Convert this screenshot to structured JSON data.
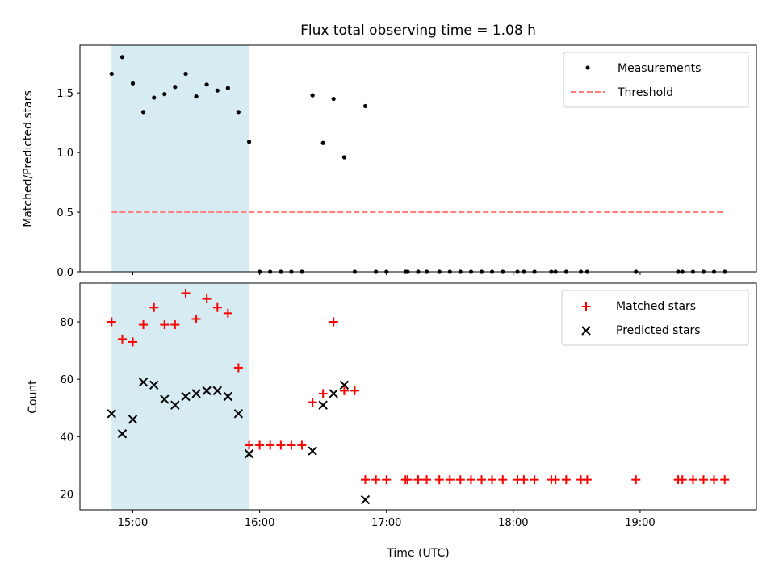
{
  "title": "Flux total observing time = 1.08 h",
  "colors": {
    "shade": "#add8e6",
    "measurement": "#000000",
    "threshold": "#ff7f7f",
    "matched": "#ff0000",
    "predicted": "#000000"
  },
  "chart_data": [
    {
      "type": "scatter",
      "ylabel": "Matched/Predicted stars",
      "xlabel": "",
      "x_unit": "hours (UTC)",
      "xlim": [
        14.583,
        19.917
      ],
      "ylim": [
        0,
        1.9
      ],
      "yticks": [
        0.0,
        0.5,
        1.0,
        1.5
      ],
      "ytick_labels": [
        "0.0",
        "0.5",
        "1.0",
        "1.5"
      ],
      "shaded_range": [
        14.833,
        15.917
      ],
      "legend": {
        "placement": "upper right",
        "entries": [
          "Measurements",
          "Threshold"
        ]
      },
      "threshold": {
        "name": "Threshold",
        "y": 0.5,
        "x_range": [
          14.833,
          19.667
        ]
      },
      "series": [
        {
          "name": "Measurements",
          "marker": "dot",
          "x": [
            14.833,
            14.917,
            15.0,
            15.083,
            15.167,
            15.25,
            15.333,
            15.417,
            15.5,
            15.583,
            15.667,
            15.75,
            15.833,
            15.917,
            16.0,
            16.083,
            16.167,
            16.25,
            16.333,
            16.417,
            16.5,
            16.583,
            16.667,
            16.75,
            16.833,
            16.917,
            17.0,
            17.15,
            17.167,
            17.25,
            17.317,
            17.417,
            17.5,
            17.583,
            17.667,
            17.75,
            17.833,
            17.917,
            18.033,
            18.083,
            18.167,
            18.3,
            18.333,
            18.417,
            18.533,
            18.583,
            18.967,
            19.3,
            19.333,
            19.417,
            19.5,
            19.583,
            19.667
          ],
          "y": [
            1.66,
            1.8,
            1.58,
            1.34,
            1.46,
            1.49,
            1.55,
            1.66,
            1.47,
            1.57,
            1.52,
            1.54,
            1.34,
            1.09,
            0,
            0,
            0,
            0,
            0,
            1.48,
            1.08,
            1.45,
            0.96,
            0,
            1.39,
            0,
            0,
            0,
            0,
            0,
            0,
            0,
            0,
            0,
            0,
            0,
            0,
            0,
            0,
            0,
            0,
            0,
            0,
            0,
            0,
            0,
            0,
            0,
            0,
            0,
            0,
            0,
            0
          ]
        }
      ]
    },
    {
      "type": "scatter",
      "ylabel": "Count",
      "xlabel": "Time (UTC)",
      "x_unit": "hours (UTC)",
      "xlim": [
        14.583,
        19.917
      ],
      "ylim": [
        14.5,
        93.5
      ],
      "yticks": [
        20,
        40,
        60,
        80
      ],
      "ytick_labels": [
        "20",
        "40",
        "60",
        "80"
      ],
      "xticks": [
        15,
        16,
        17,
        18,
        19
      ],
      "xtick_labels": [
        "15:00",
        "16:00",
        "17:00",
        "18:00",
        "19:00"
      ],
      "shaded_range": [
        14.833,
        15.917
      ],
      "legend": {
        "placement": "upper right",
        "entries": [
          "Matched stars",
          "Predicted stars"
        ]
      },
      "series": [
        {
          "name": "Matched stars",
          "marker": "plus",
          "x": [
            14.833,
            14.917,
            15.0,
            15.083,
            15.167,
            15.25,
            15.333,
            15.417,
            15.5,
            15.583,
            15.667,
            15.75,
            15.833,
            15.917,
            16.0,
            16.083,
            16.167,
            16.25,
            16.333,
            16.417,
            16.5,
            16.583,
            16.667,
            16.75,
            16.833,
            16.917,
            17.0,
            17.15,
            17.167,
            17.25,
            17.317,
            17.417,
            17.5,
            17.583,
            17.667,
            17.75,
            17.833,
            17.917,
            18.033,
            18.083,
            18.167,
            18.3,
            18.333,
            18.417,
            18.533,
            18.583,
            18.967,
            19.3,
            19.333,
            19.417,
            19.5,
            19.583,
            19.667
          ],
          "y": [
            80,
            74,
            73,
            79,
            85,
            79,
            79,
            90,
            81,
            88,
            85,
            83,
            64,
            37,
            37,
            37,
            37,
            37,
            37,
            52,
            55,
            80,
            56,
            56,
            25,
            25,
            25,
            25,
            25,
            25,
            25,
            25,
            25,
            25,
            25,
            25,
            25,
            25,
            25,
            25,
            25,
            25,
            25,
            25,
            25,
            25,
            25,
            25,
            25,
            25,
            25,
            25,
            25
          ]
        },
        {
          "name": "Predicted stars",
          "marker": "x",
          "x": [
            14.833,
            14.917,
            15.0,
            15.083,
            15.167,
            15.25,
            15.333,
            15.417,
            15.5,
            15.583,
            15.667,
            15.75,
            15.833,
            15.917,
            16.417,
            16.5,
            16.583,
            16.667,
            16.833
          ],
          "y": [
            48,
            41,
            46,
            59,
            58,
            53,
            51,
            54,
            55,
            56,
            56,
            54,
            48,
            34,
            35,
            51,
            55,
            58,
            18
          ]
        }
      ]
    }
  ]
}
